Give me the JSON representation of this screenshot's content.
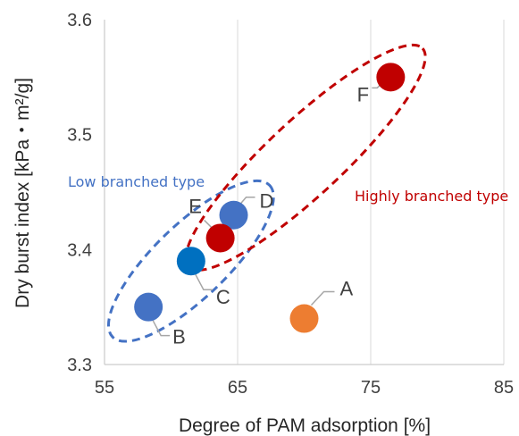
{
  "chart_data": {
    "type": "scatter",
    "xlabel": "Degree of PAM adsorption [%]",
    "ylabel": "Dry burst index [kPa・m²/g]",
    "xlim": [
      55,
      85
    ],
    "ylim": [
      3.3,
      3.6
    ],
    "xticks": [
      "55",
      "65",
      "75",
      "85"
    ],
    "yticks": [
      "3.3",
      "3.4",
      "3.5",
      "3.6"
    ],
    "grid": "vertical",
    "points": [
      {
        "label": "A",
        "x": 70.0,
        "y": 3.34,
        "color": "#ED7D31"
      },
      {
        "label": "B",
        "x": 58.3,
        "y": 3.35,
        "color": "#4472C4"
      },
      {
        "label": "C",
        "x": 61.5,
        "y": 3.39,
        "color": "#0070C0"
      },
      {
        "label": "D",
        "x": 64.7,
        "y": 3.43,
        "color": "#4472C4"
      },
      {
        "label": "E",
        "x": 63.7,
        "y": 3.41,
        "color": "#C00000"
      },
      {
        "label": "F",
        "x": 76.5,
        "y": 3.55,
        "color": "#C00000"
      }
    ],
    "groups": [
      {
        "label": "Low branched type",
        "color": "#4472C4",
        "members": [
          "B",
          "C",
          "D"
        ]
      },
      {
        "label": "Highly branched type",
        "color": "#C00000",
        "members": [
          "E",
          "F"
        ]
      }
    ]
  }
}
